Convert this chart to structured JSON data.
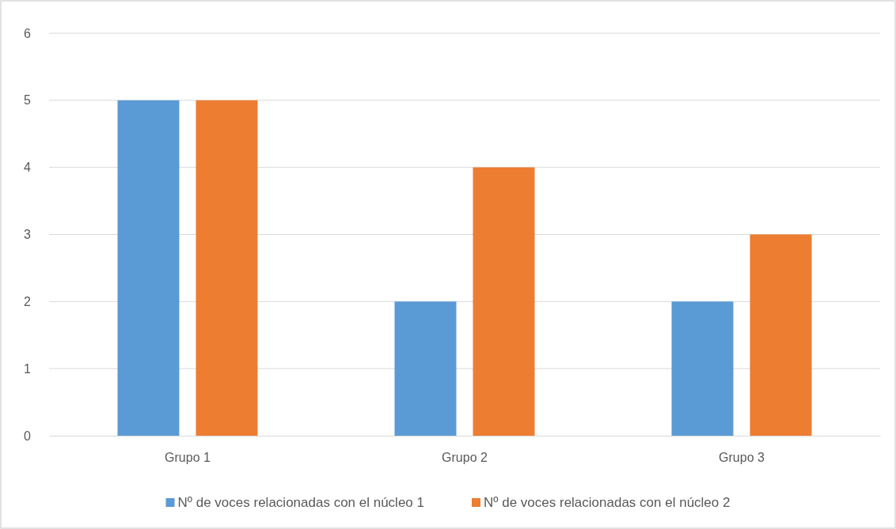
{
  "chart_data": {
    "type": "bar",
    "categories": [
      "Grupo 1",
      "Grupo 2",
      "Grupo 3"
    ],
    "series": [
      {
        "name": "Nº de voces relacionadas con el núcleo 1",
        "color": "#5b9bd5",
        "values": [
          5,
          2,
          2
        ]
      },
      {
        "name": "Nº de voces relacionadas con el núcleo 2",
        "color": "#ed7d31",
        "values": [
          5,
          4,
          3
        ]
      }
    ],
    "ylim": [
      0,
      6
    ],
    "yticks": [
      0,
      1,
      2,
      3,
      4,
      5,
      6
    ],
    "grid": "y",
    "legend": "bottom"
  }
}
